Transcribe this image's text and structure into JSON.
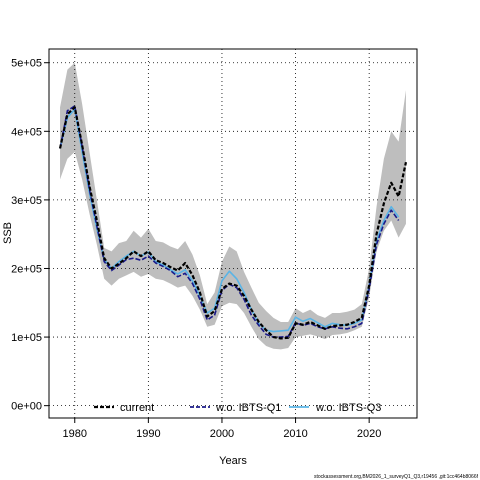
{
  "chart_data": {
    "type": "line",
    "xlabel": "Years",
    "ylabel": "SSB",
    "xlim": [
      1976.5,
      2026.5
    ],
    "ylim": [
      -18000,
      520000
    ],
    "x_ticks": [
      1980,
      1990,
      2000,
      2010,
      2020
    ],
    "x_tick_labels": [
      "1980",
      "1990",
      "2000",
      "2010",
      "2020"
    ],
    "y_ticks": [
      0,
      100000,
      200000,
      300000,
      400000,
      500000
    ],
    "y_tick_labels": [
      "0e+00",
      "1e+05",
      "2e+05",
      "3e+05",
      "4e+05",
      "5e+05"
    ],
    "grid": true,
    "legend_position": "bottom",
    "x": [
      1978,
      1979,
      1980,
      1981,
      1982,
      1983,
      1984,
      1985,
      1986,
      1987,
      1988,
      1989,
      1990,
      1991,
      1992,
      1993,
      1994,
      1995,
      1996,
      1997,
      1998,
      1999,
      2000,
      2001,
      2002,
      2003,
      2004,
      2005,
      2006,
      2007,
      2008,
      2009,
      2010,
      2011,
      2012,
      2013,
      2014,
      2015,
      2016,
      2017,
      2018,
      2019,
      2020,
      2021,
      2022,
      2023,
      2024,
      2025
    ],
    "series": [
      {
        "name": "current",
        "color": "#000000",
        "style": "dashed",
        "values": [
          375000,
          425000,
          435000,
          380000,
          320000,
          270000,
          215000,
          200000,
          207000,
          215000,
          225000,
          218000,
          225000,
          212000,
          208000,
          202000,
          197000,
          208000,
          190000,
          165000,
          130000,
          138000,
          170000,
          178000,
          175000,
          160000,
          140000,
          122000,
          110000,
          100000,
          98000,
          99000,
          120000,
          118000,
          122000,
          117000,
          112000,
          116000,
          117000,
          118000,
          122000,
          128000,
          175000,
          250000,
          295000,
          325000,
          305000,
          355000
        ],
        "lower": [
          330000,
          360000,
          370000,
          330000,
          280000,
          235000,
          185000,
          175000,
          185000,
          190000,
          195000,
          188000,
          192000,
          185000,
          183000,
          178000,
          172000,
          175000,
          160000,
          140000,
          115000,
          118000,
          145000,
          150000,
          148000,
          135000,
          115000,
          97000,
          87000,
          83000,
          82000,
          84000,
          100000,
          102000,
          104000,
          101000,
          97000,
          103000,
          104000,
          106000,
          110000,
          115000,
          158000,
          225000,
          255000,
          270000,
          245000,
          265000
        ],
        "upper": [
          435000,
          490000,
          500000,
          440000,
          370000,
          300000,
          230000,
          225000,
          237000,
          240000,
          255000,
          245000,
          258000,
          240000,
          238000,
          232000,
          228000,
          240000,
          220000,
          190000,
          148000,
          165000,
          210000,
          232000,
          225000,
          195000,
          172000,
          150000,
          138000,
          128000,
          122000,
          122000,
          142000,
          135000,
          140000,
          132000,
          128000,
          135000,
          135000,
          137000,
          140000,
          148000,
          200000,
          290000,
          360000,
          400000,
          385000,
          460000
        ]
      },
      {
        "name": "w.o. IBTS-Q1",
        "color": "#1a1a8a",
        "style": "dashed",
        "values": [
          375000,
          430000,
          437000,
          378000,
          315000,
          262000,
          210000,
          197000,
          205000,
          213000,
          215000,
          212000,
          218000,
          208000,
          203000,
          197000,
          188000,
          193000,
          178000,
          155000,
          125000,
          132000,
          168000,
          177000,
          172000,
          155000,
          132000,
          117000,
          104000,
          100000,
          100000,
          101000,
          121000,
          117000,
          120000,
          115000,
          112000,
          115000,
          113000,
          112000,
          115000,
          120000,
          170000,
          235000,
          265000,
          285000,
          270000,
          0
        ]
      },
      {
        "name": "w.o. IBTS-Q3",
        "color": "#5ab4e6",
        "style": "solid",
        "values": [
          375000,
          420000,
          432000,
          370000,
          310000,
          258000,
          213000,
          200000,
          210000,
          218000,
          225000,
          218000,
          224000,
          210000,
          205000,
          198000,
          192000,
          198000,
          182000,
          160000,
          135000,
          142000,
          182000,
          196000,
          185000,
          165000,
          140000,
          120000,
          110000,
          108000,
          109000,
          110000,
          129000,
          123000,
          127000,
          121000,
          115000,
          120000,
          118000,
          117000,
          120000,
          125000,
          175000,
          240000,
          270000,
          290000,
          275000,
          0
        ]
      }
    ],
    "series_end_index": [
      47,
      46,
      46
    ]
  },
  "footer": "stockassessment.org,BM2026_1_surveyQ1_Q3,r19456 ,git:1cc464b8066f",
  "colors": {
    "band": "#bebebe",
    "grid": "#000000"
  }
}
